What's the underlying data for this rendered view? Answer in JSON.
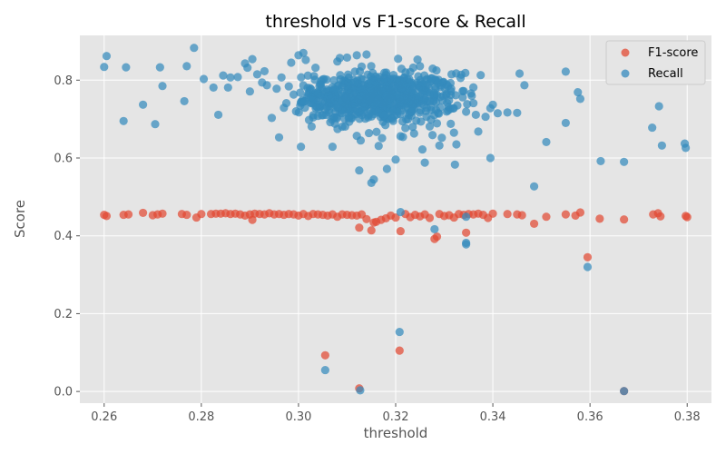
{
  "chart_data": {
    "type": "scatter",
    "title": "threshold vs F1-score & Recall",
    "xlabel": "threshold",
    "ylabel": "Score",
    "xlim": [
      0.255,
      0.385
    ],
    "ylim": [
      -0.03,
      0.915
    ],
    "xticks": [
      "0.26",
      "0.28",
      "0.30",
      "0.32",
      "0.34",
      "0.36",
      "0.38"
    ],
    "yticks": [
      "0.0",
      "0.2",
      "0.4",
      "0.6",
      "0.8"
    ],
    "grid": true,
    "legend_position": "top-right",
    "series": [
      {
        "name": "F1-score",
        "color": "#E24A33",
        "points": [
          [
            0.26,
            0.454
          ],
          [
            0.2605,
            0.451
          ],
          [
            0.264,
            0.454
          ],
          [
            0.265,
            0.455
          ],
          [
            0.268,
            0.459
          ],
          [
            0.27,
            0.453
          ],
          [
            0.271,
            0.455
          ],
          [
            0.272,
            0.457
          ],
          [
            0.276,
            0.456
          ],
          [
            0.277,
            0.454
          ],
          [
            0.279,
            0.447
          ],
          [
            0.28,
            0.456
          ],
          [
            0.282,
            0.456
          ],
          [
            0.283,
            0.457
          ],
          [
            0.284,
            0.457
          ],
          [
            0.285,
            0.458
          ],
          [
            0.286,
            0.456
          ],
          [
            0.287,
            0.457
          ],
          [
            0.288,
            0.455
          ],
          [
            0.289,
            0.452
          ],
          [
            0.29,
            0.455
          ],
          [
            0.2905,
            0.441
          ],
          [
            0.291,
            0.457
          ],
          [
            0.292,
            0.456
          ],
          [
            0.293,
            0.455
          ],
          [
            0.294,
            0.458
          ],
          [
            0.295,
            0.455
          ],
          [
            0.296,
            0.456
          ],
          [
            0.297,
            0.454
          ],
          [
            0.298,
            0.456
          ],
          [
            0.299,
            0.455
          ],
          [
            0.3,
            0.452
          ],
          [
            0.301,
            0.456
          ],
          [
            0.302,
            0.451
          ],
          [
            0.303,
            0.456
          ],
          [
            0.304,
            0.455
          ],
          [
            0.305,
            0.454
          ],
          [
            0.306,
            0.452
          ],
          [
            0.307,
            0.455
          ],
          [
            0.308,
            0.449
          ],
          [
            0.309,
            0.455
          ],
          [
            0.31,
            0.454
          ],
          [
            0.311,
            0.453
          ],
          [
            0.312,
            0.452
          ],
          [
            0.3125,
            0.421
          ],
          [
            0.313,
            0.455
          ],
          [
            0.314,
            0.443
          ],
          [
            0.315,
            0.414
          ],
          [
            0.3155,
            0.434
          ],
          [
            0.316,
            0.436
          ],
          [
            0.317,
            0.441
          ],
          [
            0.318,
            0.445
          ],
          [
            0.319,
            0.452
          ],
          [
            0.32,
            0.447
          ],
          [
            0.321,
            0.412
          ],
          [
            0.322,
            0.456
          ],
          [
            0.323,
            0.448
          ],
          [
            0.324,
            0.454
          ],
          [
            0.325,
            0.45
          ],
          [
            0.326,
            0.455
          ],
          [
            0.327,
            0.446
          ],
          [
            0.328,
            0.392
          ],
          [
            0.3285,
            0.398
          ],
          [
            0.329,
            0.456
          ],
          [
            0.33,
            0.451
          ],
          [
            0.331,
            0.453
          ],
          [
            0.332,
            0.447
          ],
          [
            0.333,
            0.456
          ],
          [
            0.334,
            0.454
          ],
          [
            0.3345,
            0.408
          ],
          [
            0.335,
            0.456
          ],
          [
            0.336,
            0.455
          ],
          [
            0.337,
            0.457
          ],
          [
            0.338,
            0.454
          ],
          [
            0.339,
            0.446
          ],
          [
            0.34,
            0.457
          ],
          [
            0.343,
            0.456
          ],
          [
            0.345,
            0.455
          ],
          [
            0.346,
            0.453
          ],
          [
            0.3485,
            0.431
          ],
          [
            0.351,
            0.449
          ],
          [
            0.355,
            0.455
          ],
          [
            0.357,
            0.452
          ],
          [
            0.358,
            0.46
          ],
          [
            0.3595,
            0.345
          ],
          [
            0.362,
            0.444
          ],
          [
            0.367,
            0.442
          ],
          [
            0.373,
            0.455
          ],
          [
            0.374,
            0.458
          ],
          [
            0.3745,
            0.45
          ],
          [
            0.38,
            0.448
          ],
          [
            0.3797,
            0.451
          ],
          [
            0.3055,
            0.093
          ],
          [
            0.3208,
            0.105
          ],
          [
            0.3125,
            0.008
          ],
          [
            0.367,
            0.001
          ]
        ]
      },
      {
        "name": "Recall",
        "color": "#348ABD",
        "points": [
          [
            0.26,
            0.834
          ],
          [
            0.2605,
            0.862
          ],
          [
            0.264,
            0.695
          ],
          [
            0.2645,
            0.833
          ],
          [
            0.268,
            0.737
          ],
          [
            0.2705,
            0.687
          ],
          [
            0.2715,
            0.833
          ],
          [
            0.272,
            0.785
          ],
          [
            0.2765,
            0.746
          ],
          [
            0.277,
            0.836
          ],
          [
            0.2785,
            0.883
          ],
          [
            0.2805,
            0.803
          ],
          [
            0.2825,
            0.781
          ],
          [
            0.2835,
            0.711
          ],
          [
            0.2845,
            0.812
          ],
          [
            0.2855,
            0.781
          ],
          [
            0.286,
            0.807
          ],
          [
            0.2875,
            0.808
          ],
          [
            0.289,
            0.843
          ],
          [
            0.2895,
            0.832
          ],
          [
            0.29,
            0.771
          ],
          [
            0.2905,
            0.854
          ],
          [
            0.2915,
            0.815
          ],
          [
            0.2925,
            0.794
          ],
          [
            0.293,
            0.823
          ],
          [
            0.2935,
            0.787
          ],
          [
            0.2945,
            0.703
          ],
          [
            0.2955,
            0.778
          ],
          [
            0.296,
            0.653
          ],
          [
            0.2965,
            0.807
          ],
          [
            0.297,
            0.729
          ],
          [
            0.2975,
            0.741
          ],
          [
            0.298,
            0.784
          ],
          [
            0.2985,
            0.845
          ],
          [
            0.299,
            0.763
          ],
          [
            0.2995,
            0.72
          ],
          [
            0.3,
            0.864
          ],
          [
            0.3005,
            0.629
          ],
          [
            0.301,
            0.87
          ],
          [
            0.3015,
            0.852
          ],
          [
            0.302,
            0.762
          ],
          [
            0.3025,
            0.742
          ],
          [
            0.303,
            0.704
          ],
          [
            0.3035,
            0.832
          ],
          [
            0.304,
            0.708
          ],
          [
            0.305,
            0.802
          ],
          [
            0.306,
            0.751
          ],
          [
            0.307,
            0.629
          ],
          [
            0.3075,
            0.688
          ],
          [
            0.308,
            0.848
          ],
          [
            0.3085,
            0.857
          ],
          [
            0.3095,
            0.7
          ],
          [
            0.31,
            0.858
          ],
          [
            0.3105,
            0.772
          ],
          [
            0.311,
            0.702
          ],
          [
            0.312,
            0.864
          ],
          [
            0.312,
            0.657
          ],
          [
            0.3125,
            0.568
          ],
          [
            0.3128,
            0.645
          ],
          [
            0.313,
            0.835
          ],
          [
            0.314,
            0.866
          ],
          [
            0.3145,
            0.664
          ],
          [
            0.315,
            0.536
          ],
          [
            0.3155,
            0.545
          ],
          [
            0.3165,
            0.631
          ],
          [
            0.3172,
            0.651
          ],
          [
            0.3182,
            0.572
          ],
          [
            0.3192,
            0.757
          ],
          [
            0.32,
            0.596
          ],
          [
            0.3205,
            0.855
          ],
          [
            0.321,
            0.656
          ],
          [
            0.3215,
            0.654
          ],
          [
            0.322,
            0.677
          ],
          [
            0.323,
            0.821
          ],
          [
            0.3235,
            0.68
          ],
          [
            0.3245,
            0.853
          ],
          [
            0.325,
            0.836
          ],
          [
            0.3255,
            0.622
          ],
          [
            0.326,
            0.588
          ],
          [
            0.3265,
            0.803
          ],
          [
            0.327,
            0.681
          ],
          [
            0.3285,
            0.689
          ],
          [
            0.329,
            0.632
          ],
          [
            0.3295,
            0.652
          ],
          [
            0.3305,
            0.789
          ],
          [
            0.3315,
            0.815
          ],
          [
            0.332,
            0.665
          ],
          [
            0.3322,
            0.583
          ],
          [
            0.3325,
            0.635
          ],
          [
            0.3335,
            0.814
          ],
          [
            0.334,
            0.772
          ],
          [
            0.3345,
            0.719
          ],
          [
            0.3355,
            0.766
          ],
          [
            0.336,
            0.741
          ],
          [
            0.3365,
            0.711
          ],
          [
            0.337,
            0.668
          ],
          [
            0.3375,
            0.813
          ],
          [
            0.3385,
            0.706
          ],
          [
            0.3395,
            0.6
          ],
          [
            0.3395,
            0.728
          ],
          [
            0.34,
            0.737
          ],
          [
            0.341,
            0.715
          ],
          [
            0.343,
            0.717
          ],
          [
            0.345,
            0.716
          ],
          [
            0.3455,
            0.817
          ],
          [
            0.3465,
            0.787
          ],
          [
            0.3485,
            0.527
          ],
          [
            0.351,
            0.641
          ],
          [
            0.355,
            0.822
          ],
          [
            0.355,
            0.69
          ],
          [
            0.3575,
            0.769
          ],
          [
            0.358,
            0.752
          ],
          [
            0.3622,
            0.592
          ],
          [
            0.367,
            0.59
          ],
          [
            0.3728,
            0.678
          ],
          [
            0.3742,
            0.733
          ],
          [
            0.3748,
            0.632
          ],
          [
            0.3795,
            0.637
          ],
          [
            0.3797,
            0.626
          ],
          [
            0.321,
            0.461
          ],
          [
            0.3345,
            0.449
          ],
          [
            0.328,
            0.417
          ],
          [
            0.3345,
            0.378
          ],
          [
            0.3345,
            0.382
          ],
          [
            0.3595,
            0.32
          ],
          [
            0.3208,
            0.153
          ],
          [
            0.3055,
            0.055
          ],
          [
            0.3127,
            0.003
          ],
          [
            0.367,
            0.001
          ]
        ],
        "cluster": {
          "x_range": [
            0.3,
            0.336
          ],
          "y_range": [
            0.65,
            0.84
          ],
          "center": [
            0.316,
            0.755
          ],
          "count": 700
        }
      }
    ]
  }
}
